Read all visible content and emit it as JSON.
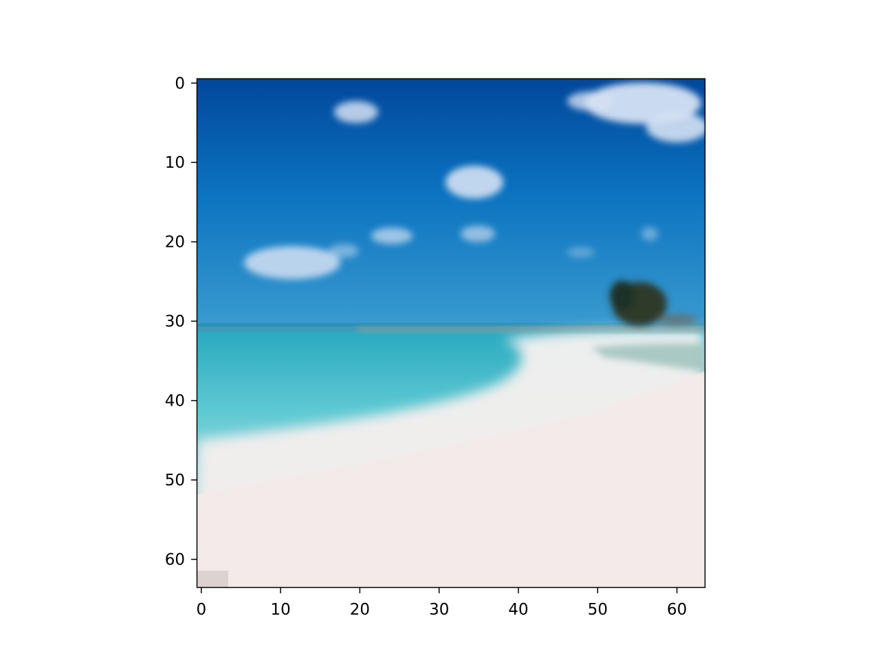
{
  "chart_data": {
    "type": "image",
    "image_grid_size": [
      64,
      64
    ],
    "xlim": [
      -0.5,
      63.5
    ],
    "ylim": [
      63.5,
      -0.5
    ],
    "x_ticks": [
      0,
      10,
      20,
      30,
      40,
      50,
      60
    ],
    "y_ticks": [
      0,
      10,
      20,
      30,
      40,
      50,
      60
    ],
    "x_tick_labels": [
      "0",
      "10",
      "20",
      "30",
      "40",
      "50",
      "60"
    ],
    "y_tick_labels": [
      "0",
      "10",
      "20",
      "30",
      "40",
      "50",
      "60"
    ],
    "grid": false,
    "image_description_colors": {
      "sky_top": "#044a9e",
      "sky_mid": "#0b6fbd",
      "sky_horizon": "#3b9ad0",
      "sea_turquoise": "#4cc4d0",
      "shallow_water": "#cde7ea",
      "sand": "#f2eae8",
      "cloud": "#d6e2f2",
      "tree": "#2c3a2a"
    }
  }
}
